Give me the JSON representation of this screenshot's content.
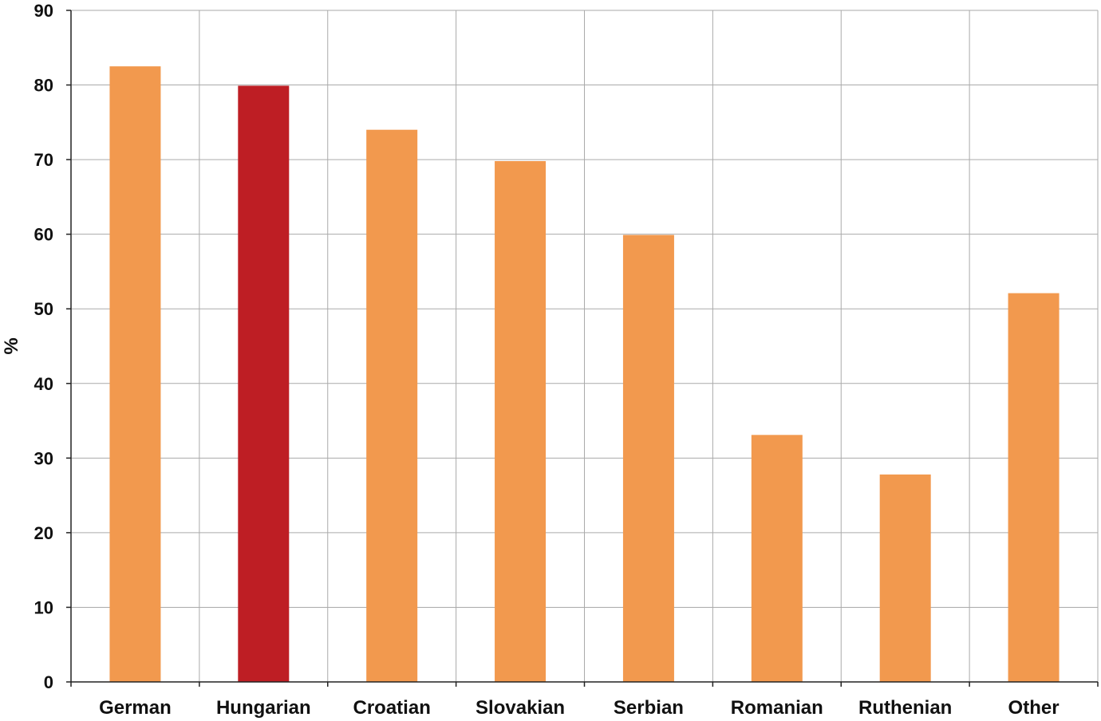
{
  "chart_data": {
    "type": "bar",
    "title": "",
    "xlabel": "",
    "ylabel": "%",
    "ylim": [
      0,
      90
    ],
    "yticks": [
      0,
      10,
      20,
      30,
      40,
      50,
      60,
      70,
      80,
      90
    ],
    "grid": true,
    "categories": [
      "German",
      "Hungarian",
      "Croatian",
      "Slovakian",
      "Serbian",
      "Romanian",
      "Ruthenian",
      "Other"
    ],
    "values": [
      82.5,
      79.9,
      74.0,
      69.8,
      59.9,
      33.1,
      27.8,
      52.1
    ],
    "colors": [
      "#F2994E",
      "#BE1E24",
      "#F2994E",
      "#F2994E",
      "#F2994E",
      "#F2994E",
      "#F2994E",
      "#F2994E"
    ]
  }
}
